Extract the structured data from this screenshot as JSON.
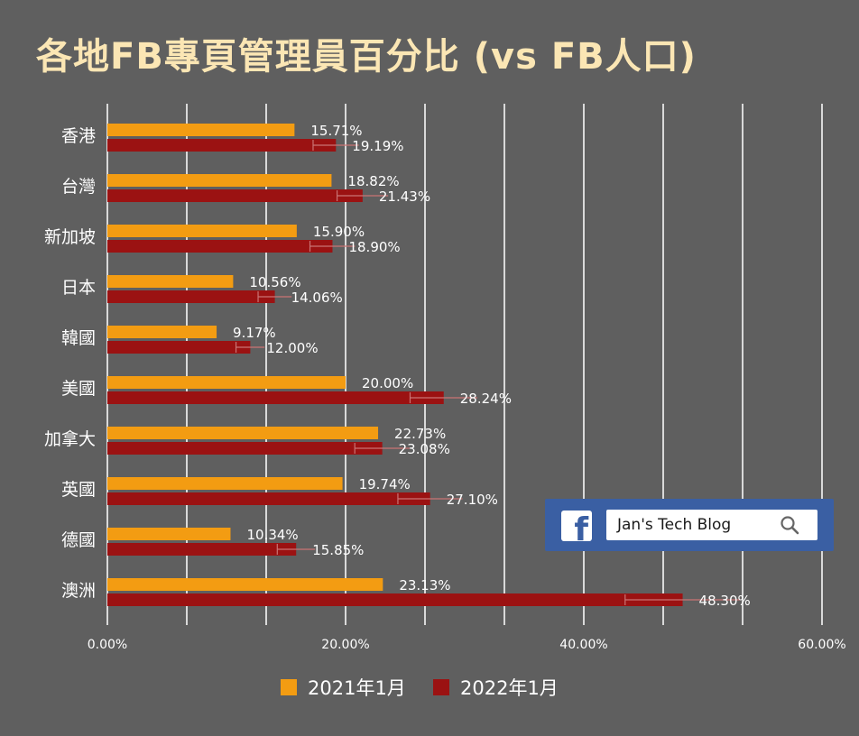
{
  "chart_data": {
    "type": "bar",
    "orientation": "horizontal",
    "title": "各地FB專頁管理員百分比 (vs FB人口)",
    "categories": [
      "香港",
      "台灣",
      "新加坡",
      "日本",
      "韓國",
      "美國",
      "加拿大",
      "英國",
      "德國",
      "澳洲"
    ],
    "series": [
      {
        "name": "2021年1月",
        "color": "#f39c12",
        "values": [
          15.71,
          18.82,
          15.9,
          10.56,
          9.17,
          20.0,
          22.73,
          19.74,
          10.34,
          23.13
        ],
        "labels": [
          "15.71%",
          "18.82%",
          "15.90%",
          "10.56%",
          "9.17%",
          "20.00%",
          "22.73%",
          "19.74%",
          "10.34%",
          "23.13%"
        ]
      },
      {
        "name": "2022年1月",
        "color": "#9b1212",
        "values": [
          19.19,
          21.43,
          18.9,
          14.06,
          12.0,
          28.24,
          23.08,
          27.1,
          15.85,
          48.3
        ],
        "labels": [
          "19.19%",
          "21.43%",
          "18.90%",
          "14.06%",
          "12.00%",
          "28.24%",
          "23.08%",
          "27.10%",
          "15.85%",
          "48.30%"
        ]
      }
    ],
    "xlim": [
      0,
      60
    ],
    "xticks": [
      "0.00%",
      "20.00%",
      "40.00%",
      "60.00%"
    ],
    "grid": true,
    "legend": "bottom-center"
  },
  "badge": {
    "text": "Jan's Tech Blog",
    "logo": "facebook-logo-icon",
    "logo_glyph": "f",
    "search_icon": "search-icon"
  }
}
